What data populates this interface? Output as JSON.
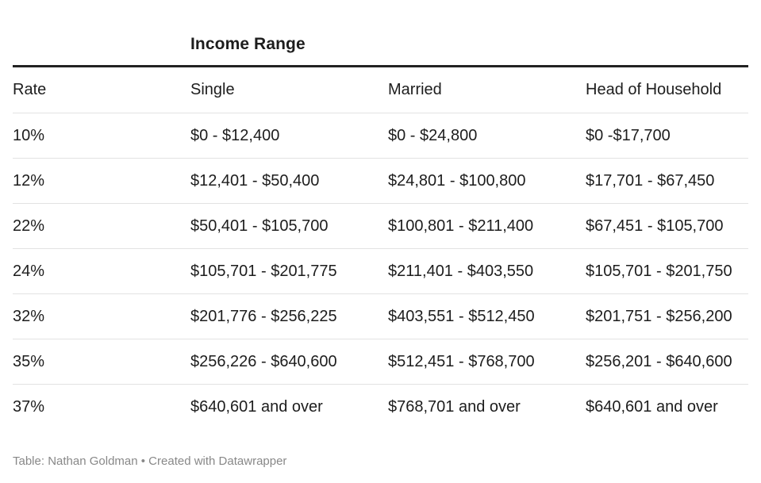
{
  "table": {
    "group_header": "Income Range",
    "columns": [
      "Rate",
      "Single",
      "Married",
      "Head of Household"
    ],
    "rows": [
      [
        "10%",
        "$0 - $12,400",
        "$0 - $24,800",
        "$0  -$17,700"
      ],
      [
        "12%",
        "$12,401 - $50,400",
        "$24,801 - $100,800",
        "$17,701 - $67,450"
      ],
      [
        "22%",
        "$50,401 - $105,700",
        "$100,801 - $211,400",
        "$67,451 - $105,700"
      ],
      [
        "24%",
        "$105,701 - $201,775",
        "$211,401 - $403,550",
        "$105,701 - $201,750"
      ],
      [
        "32%",
        "$201,776 - $256,225",
        "$403,551 - $512,450",
        "$201,751 - $256,200"
      ],
      [
        "35%",
        "$256,226 - $640,600",
        "$512,451 - $768,700",
        "$256,201 - $640,600"
      ],
      [
        "37%",
        "$640,601 and over",
        "$768,701 and over",
        "$640,601 and over"
      ]
    ]
  },
  "footer": {
    "source": "Table: Nathan Goldman • Created with Datawrapper"
  }
}
